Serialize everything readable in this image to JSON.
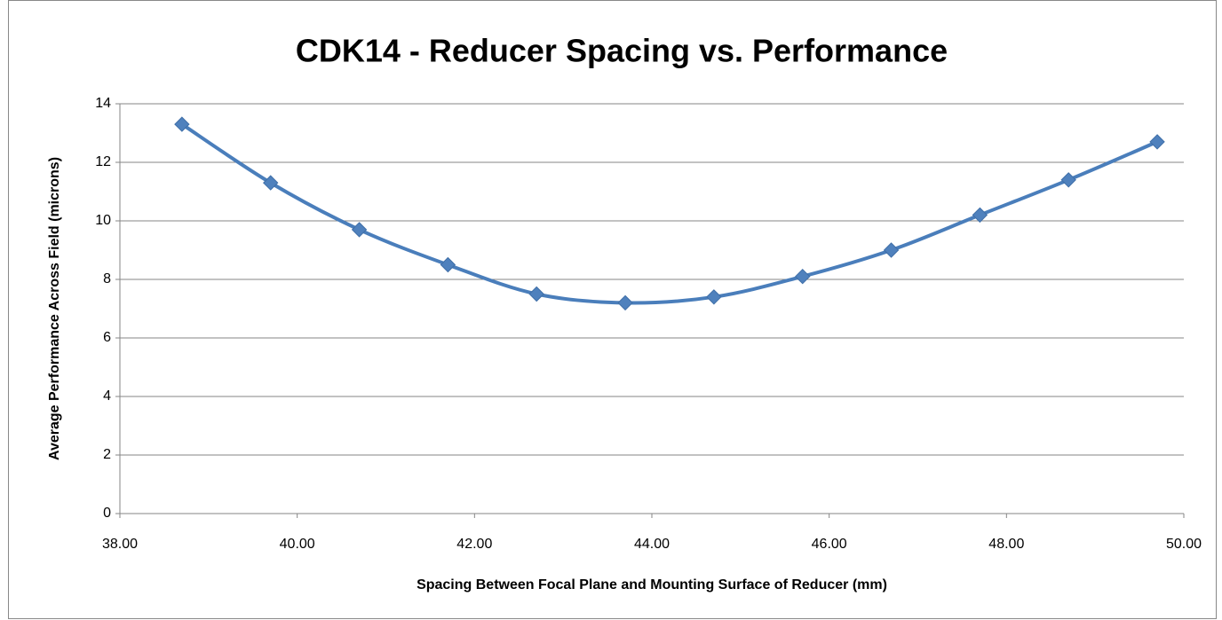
{
  "chart_data": {
    "type": "scatter",
    "title": "CDK14 - Reducer Spacing vs. Performance",
    "x_label": "Spacing Between Focal Plane and Mounting Surface of Reducer (mm)",
    "y_label": "Average Performance Across Field (microns)",
    "series": [
      {
        "color": "#4a7ebb",
        "x": [
          38.7,
          39.7,
          40.7,
          41.7,
          42.7,
          43.7,
          44.7,
          45.7,
          46.7,
          47.7,
          48.7,
          49.7
        ],
        "values": [
          13.3,
          11.3,
          9.7,
          8.5,
          7.5,
          7.2,
          7.4,
          8.1,
          9.0,
          10.2,
          11.4,
          12.7
        ]
      }
    ],
    "xlim": [
      38,
      50
    ],
    "xticks": [
      {
        "value": 38,
        "label": "38.00"
      },
      {
        "value": 40,
        "label": "40.00"
      },
      {
        "value": 42,
        "label": "42.00"
      },
      {
        "value": 44,
        "label": "44.00"
      },
      {
        "value": 46,
        "label": "46.00"
      },
      {
        "value": 48,
        "label": "48.00"
      },
      {
        "value": 50,
        "label": "50.00"
      }
    ],
    "ylim": [
      0,
      14
    ],
    "yticks": [
      0,
      2,
      4,
      6,
      8,
      10,
      12,
      14
    ],
    "grid": true,
    "smooth": true,
    "marker": "diamond"
  }
}
